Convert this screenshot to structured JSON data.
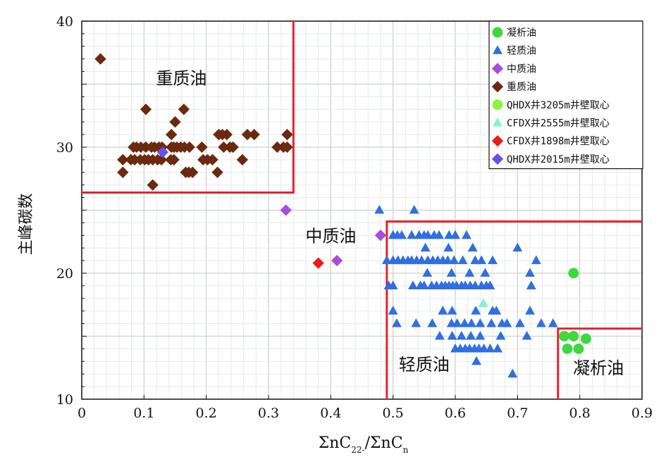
{
  "chart_data": {
    "type": "scatter",
    "xlabel": "ΣnC22-/ΣnCn",
    "ylabel": "主峰碳数",
    "xlim": [
      0,
      0.9
    ],
    "ylim": [
      10,
      40
    ],
    "x_ticks": [
      "0",
      "0.1",
      "0.2",
      "0.3",
      "0.4",
      "0.5",
      "0.6",
      "0.7",
      "0.8",
      "0.9"
    ],
    "y_ticks": [
      "10",
      "20",
      "30",
      "40"
    ],
    "grid": true,
    "legend_position": "top-right",
    "region_labels": [
      {
        "text": "重质油",
        "x": 0.16,
        "y": 35
      },
      {
        "text": "中质油",
        "x": 0.4,
        "y": 22.5
      },
      {
        "text": "轻质油",
        "x": 0.55,
        "y": 12.3
      },
      {
        "text": "凝析油",
        "x": 0.83,
        "y": 12.0
      }
    ],
    "region_boundaries": [
      {
        "name": "heavy",
        "points": [
          [
            0,
            26.4
          ],
          [
            0.34,
            26.4
          ],
          [
            0.34,
            40
          ]
        ]
      },
      {
        "name": "light",
        "points": [
          [
            0.49,
            10
          ],
          [
            0.49,
            24.1
          ],
          [
            0.9,
            24.1
          ]
        ]
      },
      {
        "name": "condensate",
        "points": [
          [
            0.765,
            10
          ],
          [
            0.765,
            15.6
          ],
          [
            0.9,
            15.6
          ]
        ]
      }
    ],
    "boundary_color": "#e8202e",
    "series": [
      {
        "name": "凝析油",
        "marker": "circle",
        "color": "#3fd83f",
        "points": [
          [
            0.79,
            20
          ],
          [
            0.775,
            15
          ],
          [
            0.79,
            15
          ],
          [
            0.81,
            14.8
          ],
          [
            0.78,
            14
          ],
          [
            0.798,
            14
          ]
        ]
      },
      {
        "name": "轻质油",
        "marker": "triangle",
        "color": "#2f6fe0",
        "points": [
          [
            0.478,
            25
          ],
          [
            0.534,
            25
          ],
          [
            0.5,
            23
          ],
          [
            0.507,
            23
          ],
          [
            0.514,
            23
          ],
          [
            0.53,
            23
          ],
          [
            0.542,
            23
          ],
          [
            0.55,
            23
          ],
          [
            0.556,
            23
          ],
          [
            0.566,
            23
          ],
          [
            0.574,
            23
          ],
          [
            0.59,
            23
          ],
          [
            0.6,
            23
          ],
          [
            0.618,
            23
          ],
          [
            0.552,
            22
          ],
          [
            0.589,
            22
          ],
          [
            0.628,
            22
          ],
          [
            0.49,
            21
          ],
          [
            0.5,
            21
          ],
          [
            0.508,
            21
          ],
          [
            0.516,
            21
          ],
          [
            0.524,
            21
          ],
          [
            0.53,
            21
          ],
          [
            0.538,
            21
          ],
          [
            0.546,
            21
          ],
          [
            0.556,
            21
          ],
          [
            0.564,
            21
          ],
          [
            0.572,
            21
          ],
          [
            0.58,
            21
          ],
          [
            0.588,
            21
          ],
          [
            0.598,
            21
          ],
          [
            0.612,
            21
          ],
          [
            0.632,
            21
          ],
          [
            0.642,
            21
          ],
          [
            0.66,
            21
          ],
          [
            0.7,
            22
          ],
          [
            0.73,
            21
          ],
          [
            0.555,
            20
          ],
          [
            0.594,
            20
          ],
          [
            0.623,
            20
          ],
          [
            0.648,
            20
          ],
          [
            0.72,
            20
          ],
          [
            0.493,
            19
          ],
          [
            0.5,
            19
          ],
          [
            0.532,
            19
          ],
          [
            0.544,
            19
          ],
          [
            0.55,
            19
          ],
          [
            0.562,
            19
          ],
          [
            0.57,
            19
          ],
          [
            0.578,
            19
          ],
          [
            0.584,
            19
          ],
          [
            0.59,
            19
          ],
          [
            0.596,
            19
          ],
          [
            0.602,
            19
          ],
          [
            0.61,
            19
          ],
          [
            0.616,
            19
          ],
          [
            0.624,
            19
          ],
          [
            0.632,
            19
          ],
          [
            0.642,
            19
          ],
          [
            0.65,
            19
          ],
          [
            0.656,
            19
          ],
          [
            0.722,
            19
          ],
          [
            0.5,
            17
          ],
          [
            0.58,
            17
          ],
          [
            0.595,
            17
          ],
          [
            0.633,
            17
          ],
          [
            0.66,
            17
          ],
          [
            0.666,
            17
          ],
          [
            0.72,
            17
          ],
          [
            0.506,
            16
          ],
          [
            0.537,
            16
          ],
          [
            0.563,
            16
          ],
          [
            0.594,
            16
          ],
          [
            0.603,
            16
          ],
          [
            0.615,
            16
          ],
          [
            0.626,
            16
          ],
          [
            0.64,
            16
          ],
          [
            0.658,
            16
          ],
          [
            0.675,
            16
          ],
          [
            0.683,
            16
          ],
          [
            0.704,
            16
          ],
          [
            0.738,
            16
          ],
          [
            0.757,
            16
          ],
          [
            0.575,
            15
          ],
          [
            0.595,
            15
          ],
          [
            0.61,
            15
          ],
          [
            0.625,
            15
          ],
          [
            0.64,
            15
          ],
          [
            0.673,
            15
          ],
          [
            0.715,
            15
          ],
          [
            0.6,
            14
          ],
          [
            0.608,
            14
          ],
          [
            0.616,
            14
          ],
          [
            0.623,
            14
          ],
          [
            0.631,
            14
          ],
          [
            0.638,
            14
          ],
          [
            0.646,
            14
          ],
          [
            0.656,
            14
          ],
          [
            0.668,
            14
          ],
          [
            0.634,
            13
          ],
          [
            0.692,
            12
          ]
        ]
      },
      {
        "name": "中质油",
        "marker": "diamond",
        "color": "#a64ddc",
        "points": [
          [
            0.328,
            25
          ],
          [
            0.48,
            23
          ],
          [
            0.41,
            21
          ]
        ]
      },
      {
        "name": "重质油",
        "marker": "diamond",
        "color": "#6b2a10",
        "points": [
          [
            0.03,
            37
          ],
          [
            0.103,
            33
          ],
          [
            0.164,
            33
          ],
          [
            0.15,
            32
          ],
          [
            0.144,
            31
          ],
          [
            0.22,
            31
          ],
          [
            0.226,
            31
          ],
          [
            0.233,
            31
          ],
          [
            0.266,
            31
          ],
          [
            0.277,
            31
          ],
          [
            0.33,
            31
          ],
          [
            0.083,
            30
          ],
          [
            0.088,
            30
          ],
          [
            0.095,
            30
          ],
          [
            0.103,
            30
          ],
          [
            0.112,
            30
          ],
          [
            0.117,
            30
          ],
          [
            0.124,
            30
          ],
          [
            0.129,
            30
          ],
          [
            0.144,
            30
          ],
          [
            0.148,
            30
          ],
          [
            0.153,
            30
          ],
          [
            0.159,
            30
          ],
          [
            0.165,
            30
          ],
          [
            0.173,
            30
          ],
          [
            0.193,
            30
          ],
          [
            0.228,
            30
          ],
          [
            0.238,
            30
          ],
          [
            0.243,
            30
          ],
          [
            0.314,
            30
          ],
          [
            0.324,
            30
          ],
          [
            0.33,
            30
          ],
          [
            0.066,
            29
          ],
          [
            0.079,
            29
          ],
          [
            0.085,
            29
          ],
          [
            0.094,
            29
          ],
          [
            0.101,
            29
          ],
          [
            0.107,
            29
          ],
          [
            0.114,
            29
          ],
          [
            0.122,
            29
          ],
          [
            0.128,
            29
          ],
          [
            0.143,
            29
          ],
          [
            0.148,
            29
          ],
          [
            0.195,
            29
          ],
          [
            0.202,
            29
          ],
          [
            0.21,
            29
          ],
          [
            0.258,
            29
          ],
          [
            0.066,
            28
          ],
          [
            0.167,
            28
          ],
          [
            0.172,
            28
          ],
          [
            0.178,
            28
          ],
          [
            0.218,
            28
          ],
          [
            0.114,
            27
          ]
        ]
      },
      {
        "name": "QHDX井3205m井壁取心",
        "marker": "circle",
        "color": "#8cf53c",
        "points": []
      },
      {
        "name": "CFDX井2555m井壁取心",
        "marker": "triangle",
        "color": "#7ef5d5",
        "points": [
          [
            0.645,
            17.6
          ]
        ]
      },
      {
        "name": "CFDX井1898m井壁取心",
        "marker": "diamond",
        "color": "#f21a1a",
        "points": [
          [
            0.38,
            20.8
          ]
        ]
      },
      {
        "name": "QHDX井2015m井壁取心",
        "marker": "diamond",
        "color": "#6a4fe6",
        "points": [
          [
            0.13,
            29.6
          ]
        ]
      }
    ]
  }
}
